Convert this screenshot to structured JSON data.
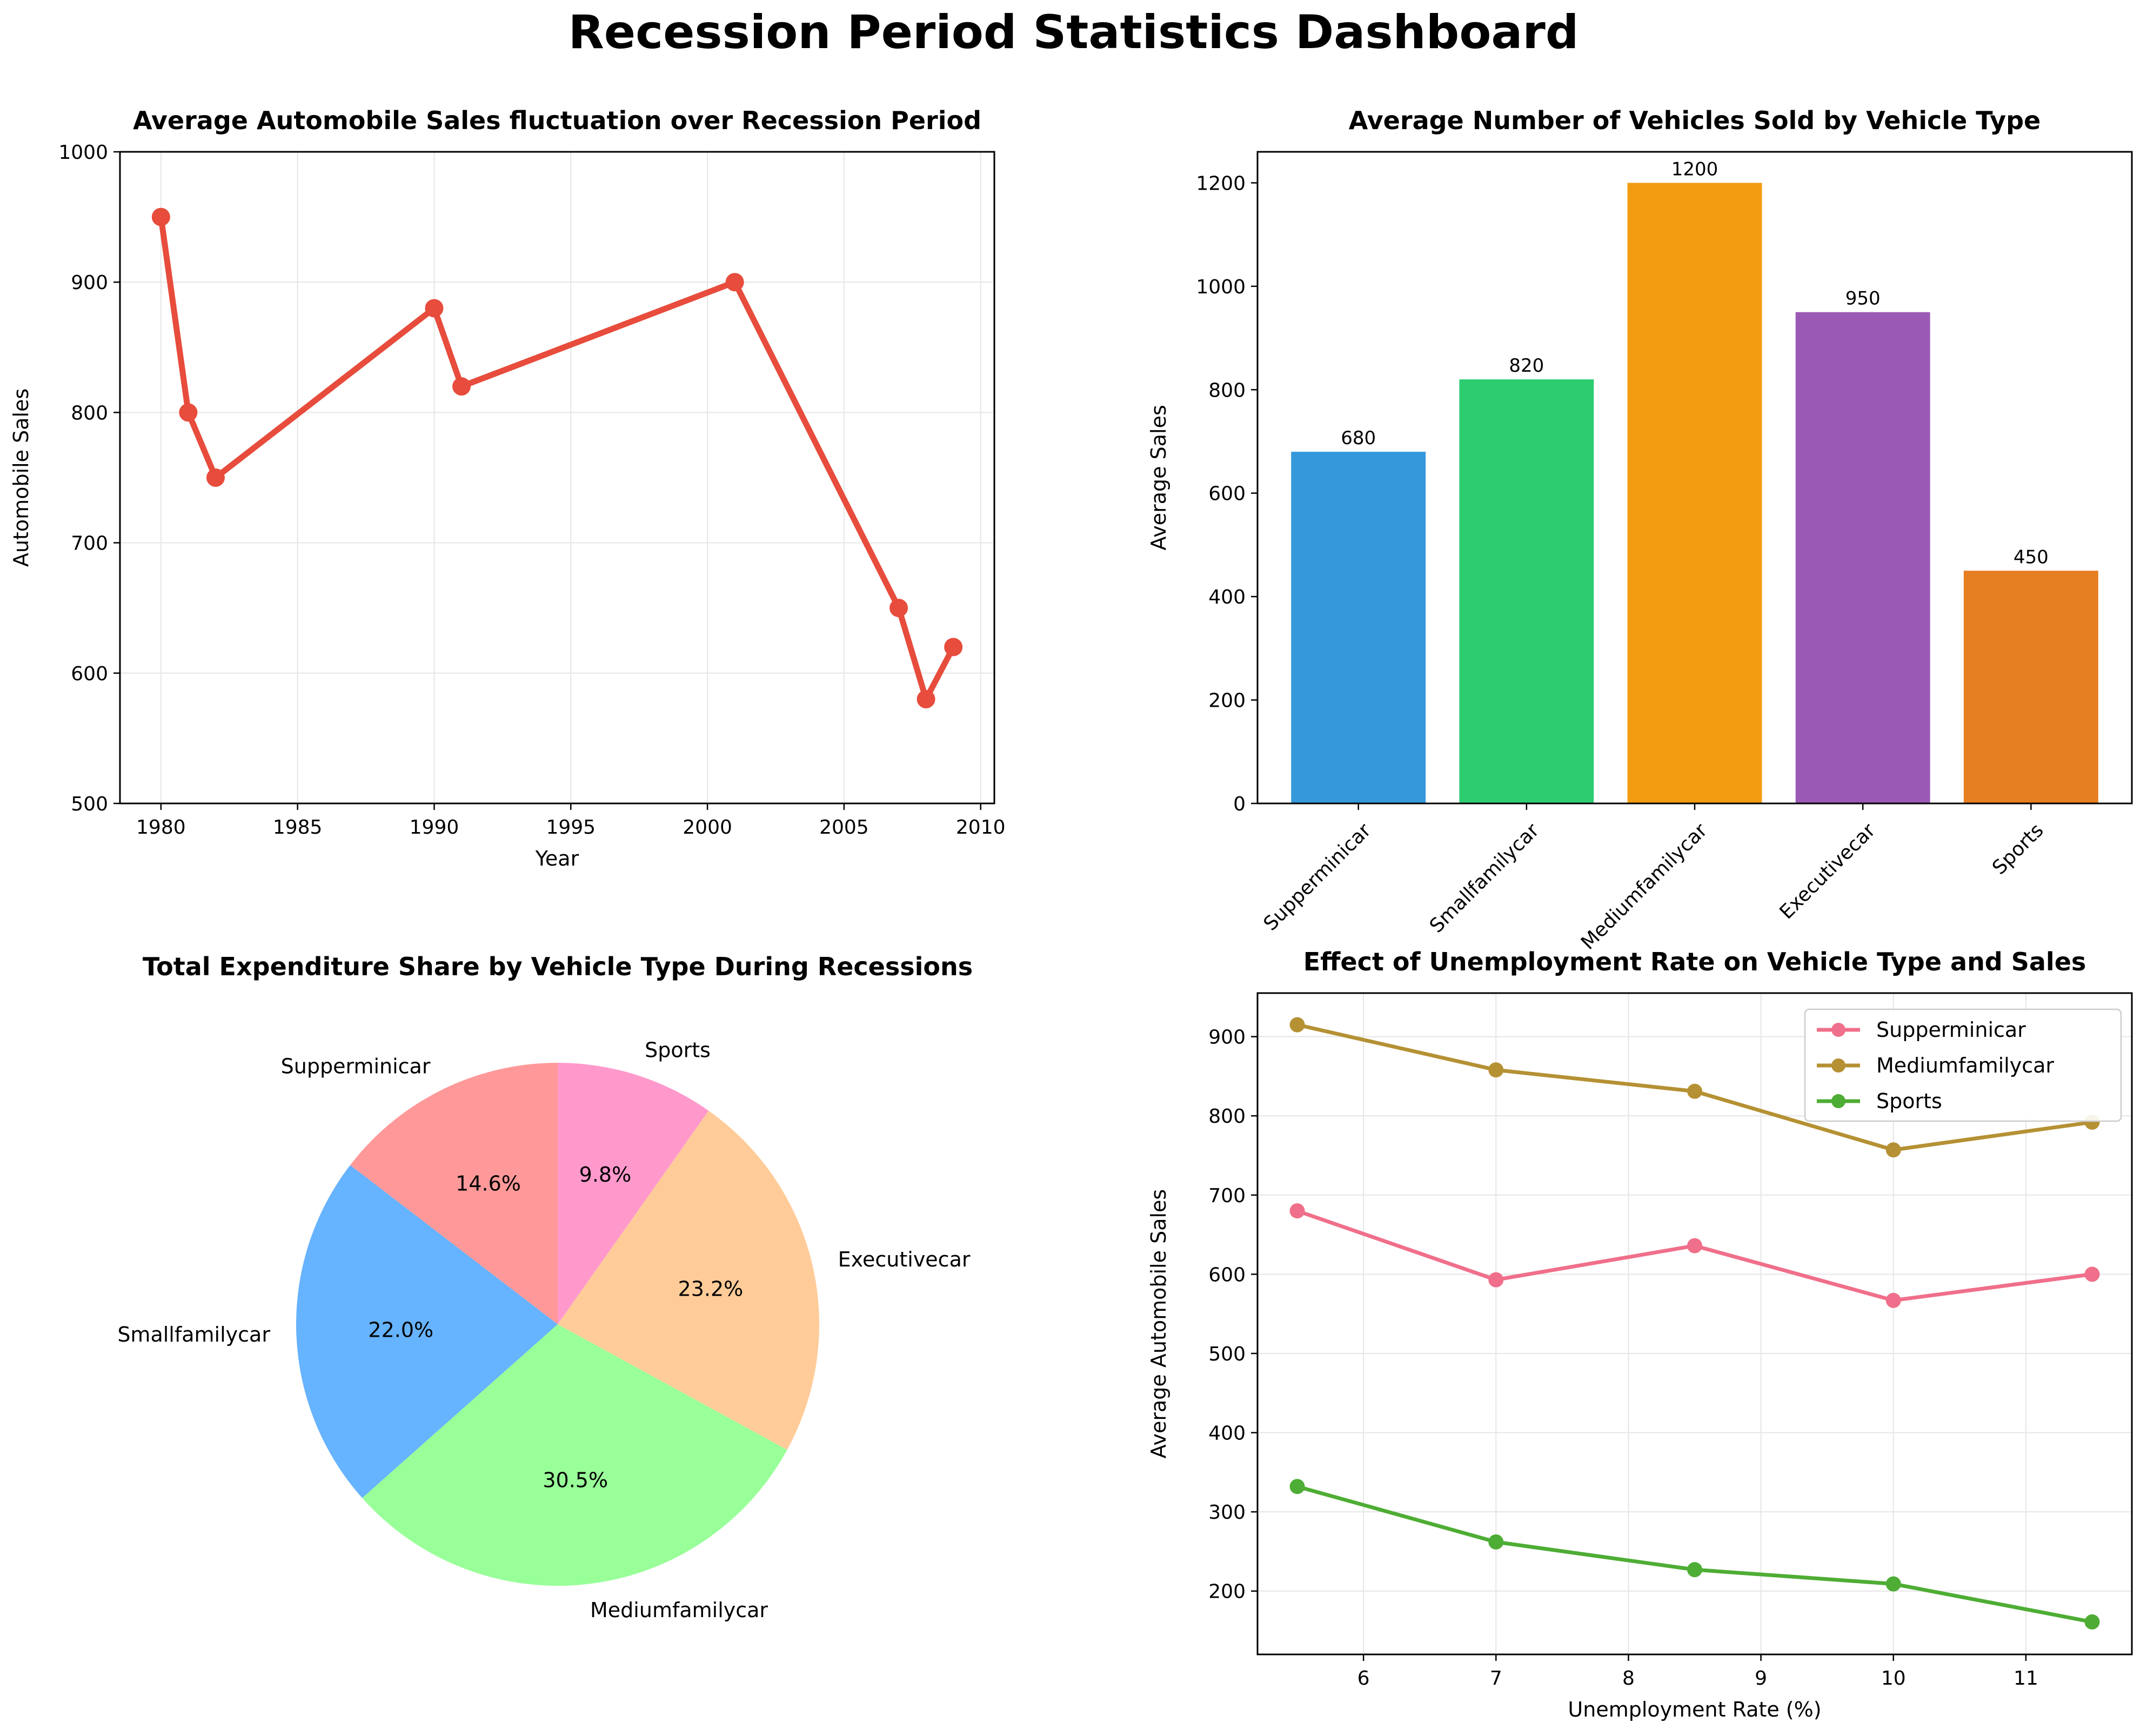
{
  "dashboard": {
    "title": "Recession Period Statistics Dashboard"
  },
  "chart_data": [
    {
      "id": "c1",
      "type": "line",
      "title": "Average Automobile Sales fluctuation over Recession Period",
      "xlabel": "Year",
      "ylabel": "Automobile Sales",
      "xlim": [
        1978.5,
        2010.5
      ],
      "ylim": [
        500,
        1000
      ],
      "xticks": [
        1980,
        1985,
        1990,
        1995,
        2000,
        2005,
        2010
      ],
      "yticks": [
        500,
        600,
        700,
        800,
        900,
        1000
      ],
      "grid": true,
      "x": [
        1980,
        1981,
        1982,
        1990,
        1991,
        2001,
        2007,
        2008,
        2009
      ],
      "y": [
        950,
        800,
        750,
        880,
        820,
        900,
        650,
        580,
        620
      ],
      "color": "#e74c3c"
    },
    {
      "id": "c2",
      "type": "bar",
      "title": "Average Number of Vehicles Sold by Vehicle Type",
      "xlabel": "",
      "ylabel": "Average Sales",
      "ylim": [
        0,
        1260
      ],
      "yticks": [
        0,
        200,
        400,
        600,
        800,
        1000,
        1200
      ],
      "grid": false,
      "categories": [
        "Supperminicar",
        "Smallfamilycar",
        "Mediumfamilycar",
        "Executivecar",
        "Sports"
      ],
      "values": [
        680,
        820,
        1200,
        950,
        450
      ],
      "colors": [
        "#3498db",
        "#2ecc71",
        "#f39c12",
        "#9b59b6",
        "#e67e22"
      ]
    },
    {
      "id": "c3",
      "type": "pie",
      "title": "Total Expenditure Share by Vehicle Type During Recessions",
      "labels": [
        "Supperminicar",
        "Smallfamilycar",
        "Mediumfamilycar",
        "Executivecar",
        "Sports"
      ],
      "percent_labels": [
        "14.6%",
        "22.0%",
        "30.5%",
        "23.2%",
        "9.8%"
      ],
      "values": [
        14.6,
        22.0,
        30.5,
        23.2,
        9.8
      ],
      "colors": [
        "#ff9999",
        "#66b3ff",
        "#99ff99",
        "#ffcc99",
        "#ff99cc"
      ],
      "start_angle": 90
    },
    {
      "id": "c4",
      "type": "line",
      "title": "Effect of Unemployment Rate on Vehicle Type and Sales",
      "xlabel": "Unemployment Rate (%)",
      "ylabel": "Average Automobile Sales",
      "xlim": [
        5.2,
        11.8
      ],
      "ylim": [
        120,
        955
      ],
      "xticks": [
        6,
        7,
        8,
        9,
        10,
        11
      ],
      "yticks": [
        200,
        300,
        400,
        500,
        600,
        700,
        800,
        900
      ],
      "grid": true,
      "legend": "top-right",
      "x": [
        5.5,
        7.0,
        8.5,
        10.0,
        11.5
      ],
      "series": [
        {
          "name": "Supperminicar",
          "values": [
            680,
            593,
            636,
            567,
            600
          ],
          "color": "#f06f8a"
        },
        {
          "name": "Mediumfamilycar",
          "values": [
            915,
            858,
            831,
            757,
            792
          ],
          "color": "#b59134"
        },
        {
          "name": "Sports",
          "values": [
            332,
            262,
            227,
            209,
            161
          ],
          "color": "#4ead34"
        }
      ]
    }
  ]
}
